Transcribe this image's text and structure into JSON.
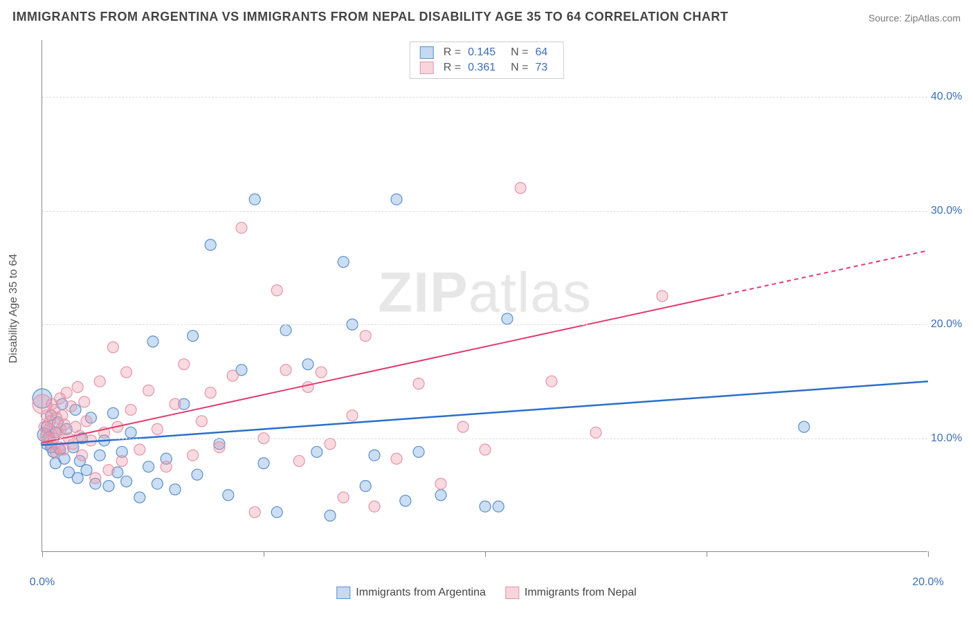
{
  "title": "IMMIGRANTS FROM ARGENTINA VS IMMIGRANTS FROM NEPAL DISABILITY AGE 35 TO 64 CORRELATION CHART",
  "source": "Source: ZipAtlas.com",
  "ylabel": "Disability Age 35 to 64",
  "watermark_a": "ZIP",
  "watermark_b": "atlas",
  "chart": {
    "type": "scatter",
    "xlim": [
      0,
      20
    ],
    "ylim": [
      0,
      45
    ],
    "x_ticks": [
      0,
      5,
      10,
      15,
      20
    ],
    "x_tick_labels": {
      "0": "0.0%",
      "20": "20.0%"
    },
    "y_ticks": [
      10,
      20,
      30,
      40
    ],
    "y_tick_labels": {
      "10": "10.0%",
      "20": "20.0%",
      "30": "30.0%",
      "40": "40.0%"
    },
    "background_color": "#ffffff",
    "grid_color": "#dddddd",
    "axis_color": "#888888",
    "text_color": "#555555",
    "tick_label_color": "#3b6db5",
    "title_color": "#444444",
    "title_fontsize": 18,
    "label_fontsize": 16
  },
  "series": [
    {
      "name": "Immigrants from Argentina",
      "key": "argentina",
      "marker_fill": "rgba(110,160,220,0.35)",
      "marker_stroke": "#5a8fc9",
      "line_color": "#2a6fc9",
      "line_width": 2.5,
      "R": "0.145",
      "N": "64",
      "regression": {
        "x1": 0,
        "y1": 9.4,
        "x2": 20,
        "y2": 15.0,
        "solid_until_x": 20
      },
      "points": [
        [
          0.05,
          10.3
        ],
        [
          0.1,
          9.5
        ],
        [
          0.1,
          11.0
        ],
        [
          0.15,
          10.1
        ],
        [
          0.2,
          9.2
        ],
        [
          0.2,
          12.0
        ],
        [
          0.25,
          8.8
        ],
        [
          0.3,
          10.5
        ],
        [
          0.3,
          7.8
        ],
        [
          0.35,
          11.4
        ],
        [
          0.4,
          9.0
        ],
        [
          0.45,
          13.0
        ],
        [
          0.5,
          8.2
        ],
        [
          0.55,
          10.8
        ],
        [
          0.6,
          7.0
        ],
        [
          0.7,
          9.2
        ],
        [
          0.75,
          12.5
        ],
        [
          0.8,
          6.5
        ],
        [
          0.85,
          8.0
        ],
        [
          0.9,
          10.0
        ],
        [
          1.0,
          7.2
        ],
        [
          1.1,
          11.8
        ],
        [
          1.2,
          6.0
        ],
        [
          1.3,
          8.5
        ],
        [
          1.4,
          9.8
        ],
        [
          1.5,
          5.8
        ],
        [
          1.6,
          12.2
        ],
        [
          1.7,
          7.0
        ],
        [
          1.8,
          8.8
        ],
        [
          1.9,
          6.2
        ],
        [
          2.0,
          10.5
        ],
        [
          2.2,
          4.8
        ],
        [
          2.4,
          7.5
        ],
        [
          2.5,
          18.5
        ],
        [
          2.6,
          6.0
        ],
        [
          2.8,
          8.2
        ],
        [
          3.0,
          5.5
        ],
        [
          3.2,
          13.0
        ],
        [
          3.4,
          19.0
        ],
        [
          3.5,
          6.8
        ],
        [
          3.8,
          27.0
        ],
        [
          4.0,
          9.5
        ],
        [
          4.2,
          5.0
        ],
        [
          4.5,
          16.0
        ],
        [
          4.8,
          31.0
        ],
        [
          5.0,
          7.8
        ],
        [
          5.3,
          3.5
        ],
        [
          5.5,
          19.5
        ],
        [
          6.0,
          16.5
        ],
        [
          6.2,
          8.8
        ],
        [
          6.5,
          3.2
        ],
        [
          6.8,
          25.5
        ],
        [
          7.0,
          20.0
        ],
        [
          7.3,
          5.8
        ],
        [
          7.5,
          8.5
        ],
        [
          8.0,
          31.0
        ],
        [
          8.2,
          4.5
        ],
        [
          8.5,
          8.8
        ],
        [
          9.0,
          5.0
        ],
        [
          10.0,
          4.0
        ],
        [
          10.3,
          4.0
        ],
        [
          10.5,
          20.5
        ],
        [
          17.2,
          11.0
        ],
        [
          0.0,
          13.5
        ]
      ],
      "sizes": [
        10,
        8,
        8,
        8,
        8,
        8,
        8,
        8,
        8,
        8,
        8,
        8,
        8,
        8,
        8,
        8,
        8,
        8,
        8,
        8,
        8,
        8,
        8,
        8,
        8,
        8,
        8,
        8,
        8,
        8,
        8,
        8,
        8,
        8,
        8,
        8,
        8,
        8,
        8,
        8,
        8,
        8,
        8,
        8,
        8,
        8,
        8,
        8,
        8,
        8,
        8,
        8,
        8,
        8,
        8,
        8,
        8,
        8,
        8,
        8,
        8,
        8,
        8,
        14
      ]
    },
    {
      "name": "Immigrants from Nepal",
      "key": "nepal",
      "marker_fill": "rgba(235,150,170,0.35)",
      "marker_stroke": "#e494a8",
      "line_color": "#e23a6e",
      "line_width": 2,
      "R": "0.361",
      "N": "73",
      "regression": {
        "x1": 0,
        "y1": 9.6,
        "x2": 20,
        "y2": 26.5,
        "solid_until_x": 15.3
      },
      "points": [
        [
          0.05,
          11.0
        ],
        [
          0.08,
          10.2
        ],
        [
          0.1,
          12.0
        ],
        [
          0.12,
          9.8
        ],
        [
          0.15,
          10.8
        ],
        [
          0.18,
          11.5
        ],
        [
          0.2,
          9.5
        ],
        [
          0.22,
          13.0
        ],
        [
          0.25,
          10.0
        ],
        [
          0.28,
          12.5
        ],
        [
          0.3,
          8.8
        ],
        [
          0.32,
          11.8
        ],
        [
          0.35,
          10.5
        ],
        [
          0.38,
          9.2
        ],
        [
          0.4,
          13.5
        ],
        [
          0.42,
          10.8
        ],
        [
          0.45,
          12.0
        ],
        [
          0.48,
          9.0
        ],
        [
          0.5,
          11.2
        ],
        [
          0.55,
          14.0
        ],
        [
          0.6,
          10.0
        ],
        [
          0.65,
          12.8
        ],
        [
          0.7,
          9.5
        ],
        [
          0.75,
          11.0
        ],
        [
          0.8,
          14.5
        ],
        [
          0.85,
          10.2
        ],
        [
          0.9,
          8.5
        ],
        [
          0.95,
          13.2
        ],
        [
          1.0,
          11.5
        ],
        [
          1.1,
          9.8
        ],
        [
          1.2,
          6.5
        ],
        [
          1.3,
          15.0
        ],
        [
          1.4,
          10.5
        ],
        [
          1.5,
          7.2
        ],
        [
          1.6,
          18.0
        ],
        [
          1.7,
          11.0
        ],
        [
          1.8,
          8.0
        ],
        [
          1.9,
          15.8
        ],
        [
          2.0,
          12.5
        ],
        [
          2.2,
          9.0
        ],
        [
          2.4,
          14.2
        ],
        [
          2.6,
          10.8
        ],
        [
          2.8,
          7.5
        ],
        [
          3.0,
          13.0
        ],
        [
          3.2,
          16.5
        ],
        [
          3.4,
          8.5
        ],
        [
          3.6,
          11.5
        ],
        [
          3.8,
          14.0
        ],
        [
          4.0,
          9.2
        ],
        [
          4.3,
          15.5
        ],
        [
          4.5,
          28.5
        ],
        [
          4.8,
          3.5
        ],
        [
          5.0,
          10.0
        ],
        [
          5.3,
          23.0
        ],
        [
          5.5,
          16.0
        ],
        [
          5.8,
          8.0
        ],
        [
          6.0,
          14.5
        ],
        [
          6.3,
          15.8
        ],
        [
          6.5,
          9.5
        ],
        [
          6.8,
          4.8
        ],
        [
          7.0,
          12.0
        ],
        [
          7.3,
          19.0
        ],
        [
          7.5,
          4.0
        ],
        [
          8.0,
          8.2
        ],
        [
          8.5,
          14.8
        ],
        [
          9.0,
          6.0
        ],
        [
          9.5,
          11.0
        ],
        [
          10.0,
          9.0
        ],
        [
          10.8,
          32.0
        ],
        [
          11.5,
          15.0
        ],
        [
          12.5,
          10.5
        ],
        [
          14.0,
          22.5
        ],
        [
          0.0,
          13.0
        ]
      ],
      "sizes": [
        8,
        8,
        8,
        8,
        8,
        8,
        8,
        8,
        8,
        8,
        8,
        8,
        8,
        8,
        8,
        8,
        8,
        8,
        8,
        8,
        8,
        8,
        8,
        8,
        8,
        8,
        8,
        8,
        8,
        8,
        8,
        8,
        8,
        8,
        8,
        8,
        8,
        8,
        8,
        8,
        8,
        8,
        8,
        8,
        8,
        8,
        8,
        8,
        8,
        8,
        8,
        8,
        8,
        8,
        8,
        8,
        8,
        8,
        8,
        8,
        8,
        8,
        8,
        8,
        8,
        8,
        8,
        8,
        8,
        8,
        8,
        8,
        14
      ]
    }
  ],
  "legend_top": {
    "r_label": "R =",
    "n_label": "N ="
  },
  "legend_bottom": [
    {
      "label": "Immigrants from Argentina",
      "fill": "rgba(110,160,220,0.4)",
      "stroke": "#5a8fc9"
    },
    {
      "label": "Immigrants from Nepal",
      "fill": "rgba(235,150,170,0.4)",
      "stroke": "#e494a8"
    }
  ]
}
